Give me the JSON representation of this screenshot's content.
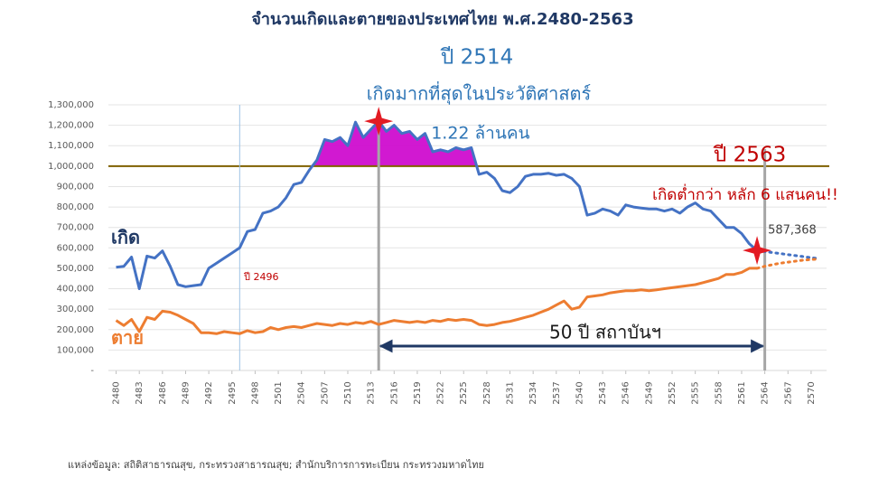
{
  "chart_data": {
    "type": "line",
    "title": "จำนวนเกิดและตายของประเทศไทย พ.ศ.2480-2563",
    "x": [
      2480,
      2481,
      2482,
      2483,
      2484,
      2485,
      2486,
      2487,
      2488,
      2489,
      2490,
      2491,
      2492,
      2493,
      2494,
      2495,
      2496,
      2497,
      2498,
      2499,
      2500,
      2501,
      2502,
      2503,
      2504,
      2505,
      2506,
      2507,
      2508,
      2509,
      2510,
      2511,
      2512,
      2513,
      2514,
      2515,
      2516,
      2517,
      2518,
      2519,
      2520,
      2521,
      2522,
      2523,
      2524,
      2525,
      2526,
      2527,
      2528,
      2529,
      2530,
      2531,
      2532,
      2533,
      2534,
      2535,
      2536,
      2537,
      2538,
      2539,
      2540,
      2541,
      2542,
      2543,
      2544,
      2545,
      2546,
      2547,
      2548,
      2549,
      2550,
      2551,
      2552,
      2553,
      2554,
      2555,
      2556,
      2557,
      2558,
      2559,
      2560,
      2561,
      2562,
      2563,
      2564,
      2565,
      2566,
      2567,
      2568,
      2569,
      2570,
      2571
    ],
    "series": [
      {
        "name": "เกิด",
        "color": "#4472c4",
        "values": [
          505000,
          510000,
          555000,
          400000,
          560000,
          550000,
          585000,
          510000,
          420000,
          410000,
          415000,
          420000,
          500000,
          525000,
          550000,
          575000,
          600000,
          680000,
          690000,
          770000,
          780000,
          800000,
          845000,
          910000,
          920000,
          980000,
          1030000,
          1130000,
          1120000,
          1140000,
          1100000,
          1215000,
          1140000,
          1180000,
          1220000,
          1170000,
          1200000,
          1160000,
          1170000,
          1130000,
          1160000,
          1070000,
          1080000,
          1070000,
          1090000,
          1080000,
          1090000,
          960000,
          970000,
          940000,
          880000,
          870000,
          900000,
          950000,
          960000,
          960000,
          965000,
          955000,
          960000,
          940000,
          900000,
          760000,
          770000,
          790000,
          780000,
          760000,
          810000,
          800000,
          795000,
          790000,
          790000,
          780000,
          790000,
          770000,
          800000,
          820000,
          790000,
          780000,
          740000,
          700000,
          700000,
          670000,
          620000,
          587368,
          null,
          null,
          null,
          null,
          null,
          null,
          null,
          null
        ],
        "value_labels": [
          null,
          null,
          null,
          null,
          null,
          null,
          null,
          null,
          null,
          null,
          null,
          null,
          null,
          null,
          null,
          null,
          null,
          null,
          null,
          null,
          null,
          null,
          null,
          null,
          null,
          null,
          null,
          null,
          null,
          null,
          null,
          null,
          null,
          null,
          "1.22 ล้านคน",
          null,
          null,
          null,
          null,
          null,
          null,
          null,
          null,
          null,
          null,
          null,
          null,
          null,
          null,
          null,
          null,
          null,
          null,
          null,
          null,
          null,
          null,
          null,
          null,
          null,
          null,
          null,
          null,
          null,
          null,
          null,
          null,
          null,
          null,
          null,
          null,
          null,
          null,
          null,
          null,
          null,
          null,
          null,
          null,
          null,
          null,
          null,
          null,
          "587,368",
          null,
          null,
          null,
          null,
          null,
          null,
          null,
          null
        ]
      },
      {
        "name": "ตาย",
        "color": "#ed7d31",
        "values": [
          245000,
          220000,
          250000,
          190000,
          260000,
          250000,
          290000,
          285000,
          270000,
          250000,
          230000,
          185000,
          185000,
          180000,
          190000,
          185000,
          180000,
          195000,
          185000,
          190000,
          210000,
          200000,
          210000,
          215000,
          210000,
          220000,
          230000,
          225000,
          220000,
          230000,
          225000,
          235000,
          230000,
          240000,
          225000,
          235000,
          245000,
          240000,
          235000,
          240000,
          235000,
          245000,
          240000,
          250000,
          245000,
          250000,
          245000,
          225000,
          220000,
          225000,
          235000,
          240000,
          250000,
          260000,
          270000,
          285000,
          300000,
          320000,
          340000,
          300000,
          310000,
          360000,
          365000,
          370000,
          380000,
          385000,
          390000,
          390000,
          395000,
          390000,
          395000,
          400000,
          405000,
          410000,
          415000,
          420000,
          430000,
          440000,
          450000,
          470000,
          470000,
          480000,
          500000,
          500000,
          null,
          null,
          null,
          null,
          null,
          null,
          null,
          null
        ]
      },
      {
        "color": "#4472c4",
        "projection": true,
        "values": [
          null,
          null,
          null,
          null,
          null,
          null,
          null,
          null,
          null,
          null,
          null,
          null,
          null,
          null,
          null,
          null,
          null,
          null,
          null,
          null,
          null,
          null,
          null,
          null,
          null,
          null,
          null,
          null,
          null,
          null,
          null,
          null,
          null,
          null,
          null,
          null,
          null,
          null,
          null,
          null,
          null,
          null,
          null,
          null,
          null,
          null,
          null,
          null,
          null,
          null,
          null,
          null,
          null,
          null,
          null,
          null,
          null,
          null,
          null,
          null,
          null,
          null,
          null,
          null,
          null,
          null,
          null,
          null,
          null,
          null,
          null,
          null,
          null,
          null,
          null,
          null,
          null,
          null,
          null,
          null,
          null,
          null,
          null,
          587368,
          582000,
          577000,
          572000,
          567000,
          562000,
          557000,
          552000,
          548000
        ]
      },
      {
        "color": "#ed7d31",
        "projection": true,
        "values": [
          null,
          null,
          null,
          null,
          null,
          null,
          null,
          null,
          null,
          null,
          null,
          null,
          null,
          null,
          null,
          null,
          null,
          null,
          null,
          null,
          null,
          null,
          null,
          null,
          null,
          null,
          null,
          null,
          null,
          null,
          null,
          null,
          null,
          null,
          null,
          null,
          null,
          null,
          null,
          null,
          null,
          null,
          null,
          null,
          null,
          null,
          null,
          null,
          null,
          null,
          null,
          null,
          null,
          null,
          null,
          null,
          null,
          null,
          null,
          null,
          null,
          null,
          null,
          null,
          null,
          null,
          null,
          null,
          null,
          null,
          null,
          null,
          null,
          null,
          null,
          null,
          null,
          null,
          null,
          null,
          null,
          null,
          null,
          500000,
          510000,
          518000,
          525000,
          530000,
          535000,
          540000,
          543000,
          545000
        ]
      }
    ],
    "xlim": [
      2479,
      2572
    ],
    "xticks": [
      2480,
      2483,
      2486,
      2489,
      2492,
      2495,
      2498,
      2501,
      2504,
      2507,
      2510,
      2513,
      2516,
      2519,
      2522,
      2525,
      2528,
      2531,
      2534,
      2537,
      2540,
      2543,
      2546,
      2549,
      2552,
      2555,
      2558,
      2561,
      2564,
      2567,
      2570
    ],
    "ylim": [
      0,
      1300000
    ],
    "yticks": [
      {
        "value": 0,
        "label": "-"
      },
      {
        "value": 100000,
        "label": "100,000"
      },
      {
        "value": 200000,
        "label": "200,000"
      },
      {
        "value": 300000,
        "label": "300,000"
      },
      {
        "value": 400000,
        "label": "400,000"
      },
      {
        "value": 500000,
        "label": "500,000"
      },
      {
        "value": 600000,
        "label": "600,000"
      },
      {
        "value": 700000,
        "label": "700,000"
      },
      {
        "value": 800000,
        "label": "800,000"
      },
      {
        "value": 900000,
        "label": "900,000"
      },
      {
        "value": 1000000,
        "label": "1,000,000"
      },
      {
        "value": 1100000,
        "label": "1,100,000"
      },
      {
        "value": 1200000,
        "label": "1,200,000"
      },
      {
        "value": 1300000,
        "label": "1,300,000"
      }
    ],
    "grid": true,
    "reference_line": {
      "value": 1000000,
      "color": "#7f6000"
    },
    "highlight_color": "#cc00cc",
    "vlines": [
      {
        "x": 2496,
        "color": "#9dc3e6"
      },
      {
        "x": 2514,
        "color": "#a6a6a6"
      },
      {
        "x": 2564,
        "color": "#a6a6a6"
      }
    ],
    "span": [
      2514,
      2564
    ],
    "annotations": {
      "peak_year": "ปี 2514",
      "peak_note": "เกิดมากที่สุดในประวัติศาสตร์",
      "latest_year": "ปี 2563",
      "latest_note": "เกิดต่ำกว่า หลัก 6 แสนคน!!",
      "year_2496": "ปี 2496",
      "span_label": "50 ปี สถาบันฯ"
    },
    "source": "แหล่งข้อมูล: สถิติสาธารณสุข, กระทรวงสาธารณสุข; สำนักบริการการทะเบียน กระทรวงมหาดไทย"
  }
}
